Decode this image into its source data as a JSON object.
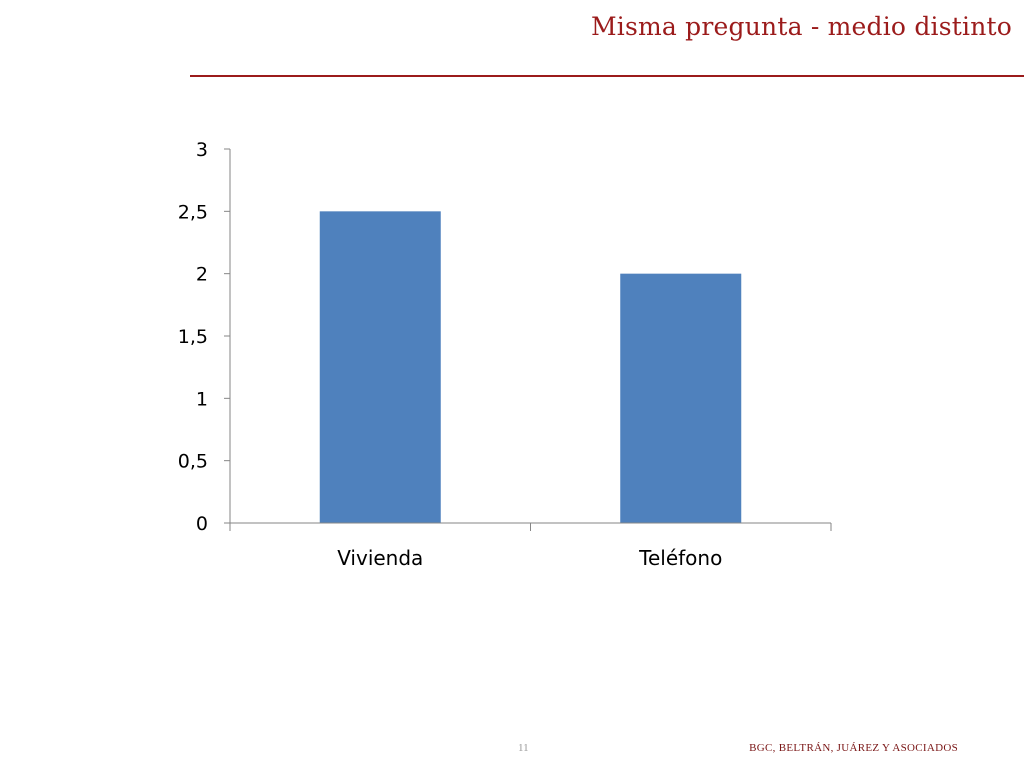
{
  "slide": {
    "title": "Misma pregunta - medio distinto",
    "page_number": "11",
    "footer": "BGC, BELTRÁN, JUÁREZ Y ASOCIADOS",
    "accent_color": "#9b1b1b"
  },
  "chart_data": {
    "type": "bar",
    "categories": [
      "Vivienda",
      "Teléfono"
    ],
    "values": [
      2.5,
      2
    ],
    "ylim": [
      0,
      3
    ],
    "yticks": [
      0,
      0.5,
      1,
      1.5,
      2,
      2.5,
      3
    ],
    "ytick_labels": [
      "0",
      "0,5",
      "1",
      "1,5",
      "2",
      "2,5",
      "3"
    ],
    "title": "",
    "xlabel": "",
    "ylabel": "",
    "bar_color": "#4f81bd",
    "grid": false,
    "legend": "none"
  }
}
